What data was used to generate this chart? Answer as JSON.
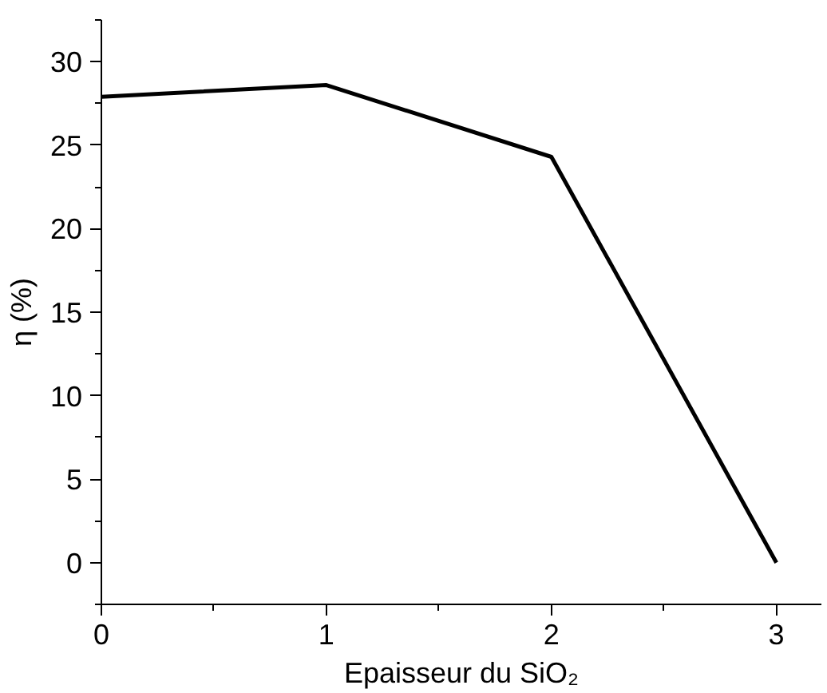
{
  "chart_data": {
    "type": "line",
    "xlabel": "Epaisseur du SiO₂",
    "ylabel": "η (%)",
    "x": [
      0,
      1,
      2,
      3
    ],
    "series": [
      {
        "color": "#000000",
        "values": [
          27.9,
          28.6,
          24.3,
          0
        ]
      }
    ],
    "xlim": [
      0,
      3.2
    ],
    "ylim": [
      -2.5,
      32.5
    ],
    "xticks": [
      0,
      1,
      2,
      3
    ],
    "yticks": [
      0,
      5,
      10,
      15,
      20,
      25,
      30
    ],
    "marker": "none",
    "line_style": "solid"
  }
}
